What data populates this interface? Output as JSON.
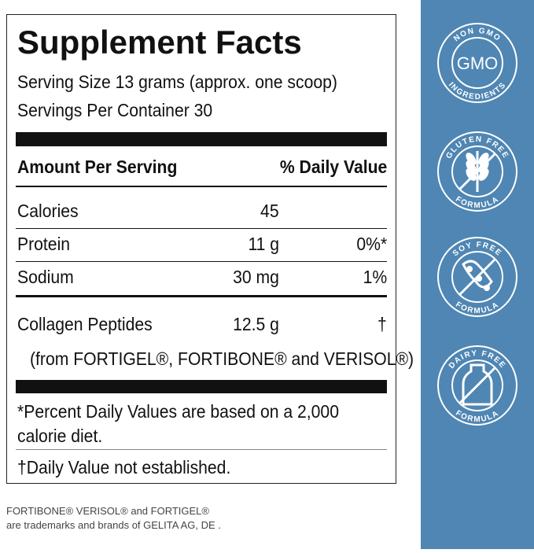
{
  "title": "Supplement Facts",
  "serving_size": "Serving Size 13 grams (approx. one scoop)",
  "servings_per_container": "Servings Per Container 30",
  "header": {
    "amount": "Amount Per Serving",
    "daily_value": "% Daily Value"
  },
  "rows": [
    {
      "name": "Calories",
      "amount": "45"
    },
    {
      "name": "Protein",
      "amount": "11 g",
      "dv": "0%*"
    },
    {
      "name": "Sodium",
      "amount": "30 mg",
      "dv": "1%"
    },
    {
      "name": "Collagen Peptides",
      "amount": "12.5 g",
      "dv": "†"
    }
  ],
  "source": "(from FORTIGEL®, FORTIBONE® and VERISOL®)",
  "footnotes": [
    "*Percent Daily Values are based on a 2,000 calorie diet.",
    "†Daily Value not established."
  ],
  "trademark": [
    "FORTIBONE® VERISOL® and FORTIGEL®",
    "are trademarks and brands of GELITA AG, DE ."
  ],
  "badges": [
    {
      "top": "NON GMO",
      "center": "GMO",
      "bottom": "INGREDIENTS"
    },
    {
      "top": "GLUTEN FREE",
      "bottom": "FORMULA"
    },
    {
      "top": "SOY FREE",
      "bottom": "FORMULA"
    },
    {
      "top": "DAIRY FREE",
      "bottom": "FORMULA"
    }
  ]
}
